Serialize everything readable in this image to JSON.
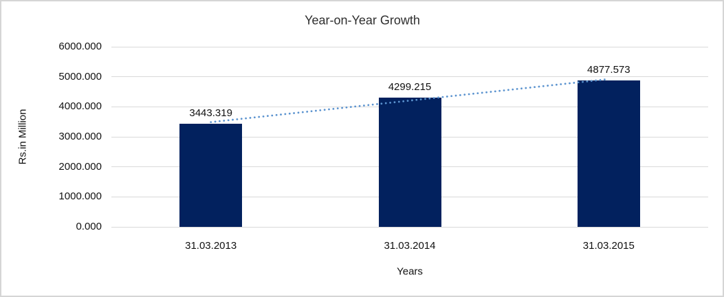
{
  "chart_data": {
    "type": "bar",
    "title": "Year-on-Year Growth",
    "xlabel": "Years",
    "ylabel": "Rs.in Million",
    "categories": [
      "31.03.2013",
      "31.03.2014",
      "31.03.2015"
    ],
    "values": [
      3443.319,
      4299.215,
      4877.573
    ],
    "data_labels": [
      "3443.319",
      "4299.215",
      "4877.573"
    ],
    "ylim": [
      0,
      6000
    ],
    "ytick_step": 1000,
    "ytick_labels": [
      "0.000",
      "1000.000",
      "2000.000",
      "3000.000",
      "4000.000",
      "5000.000",
      "6000.000"
    ],
    "grid": true,
    "legend": "none",
    "bar_color": "#02215e",
    "gridline_color": "#d9d9d9",
    "trendline": {
      "type": "linear",
      "style": "dotted",
      "color": "#5b93cf"
    }
  }
}
